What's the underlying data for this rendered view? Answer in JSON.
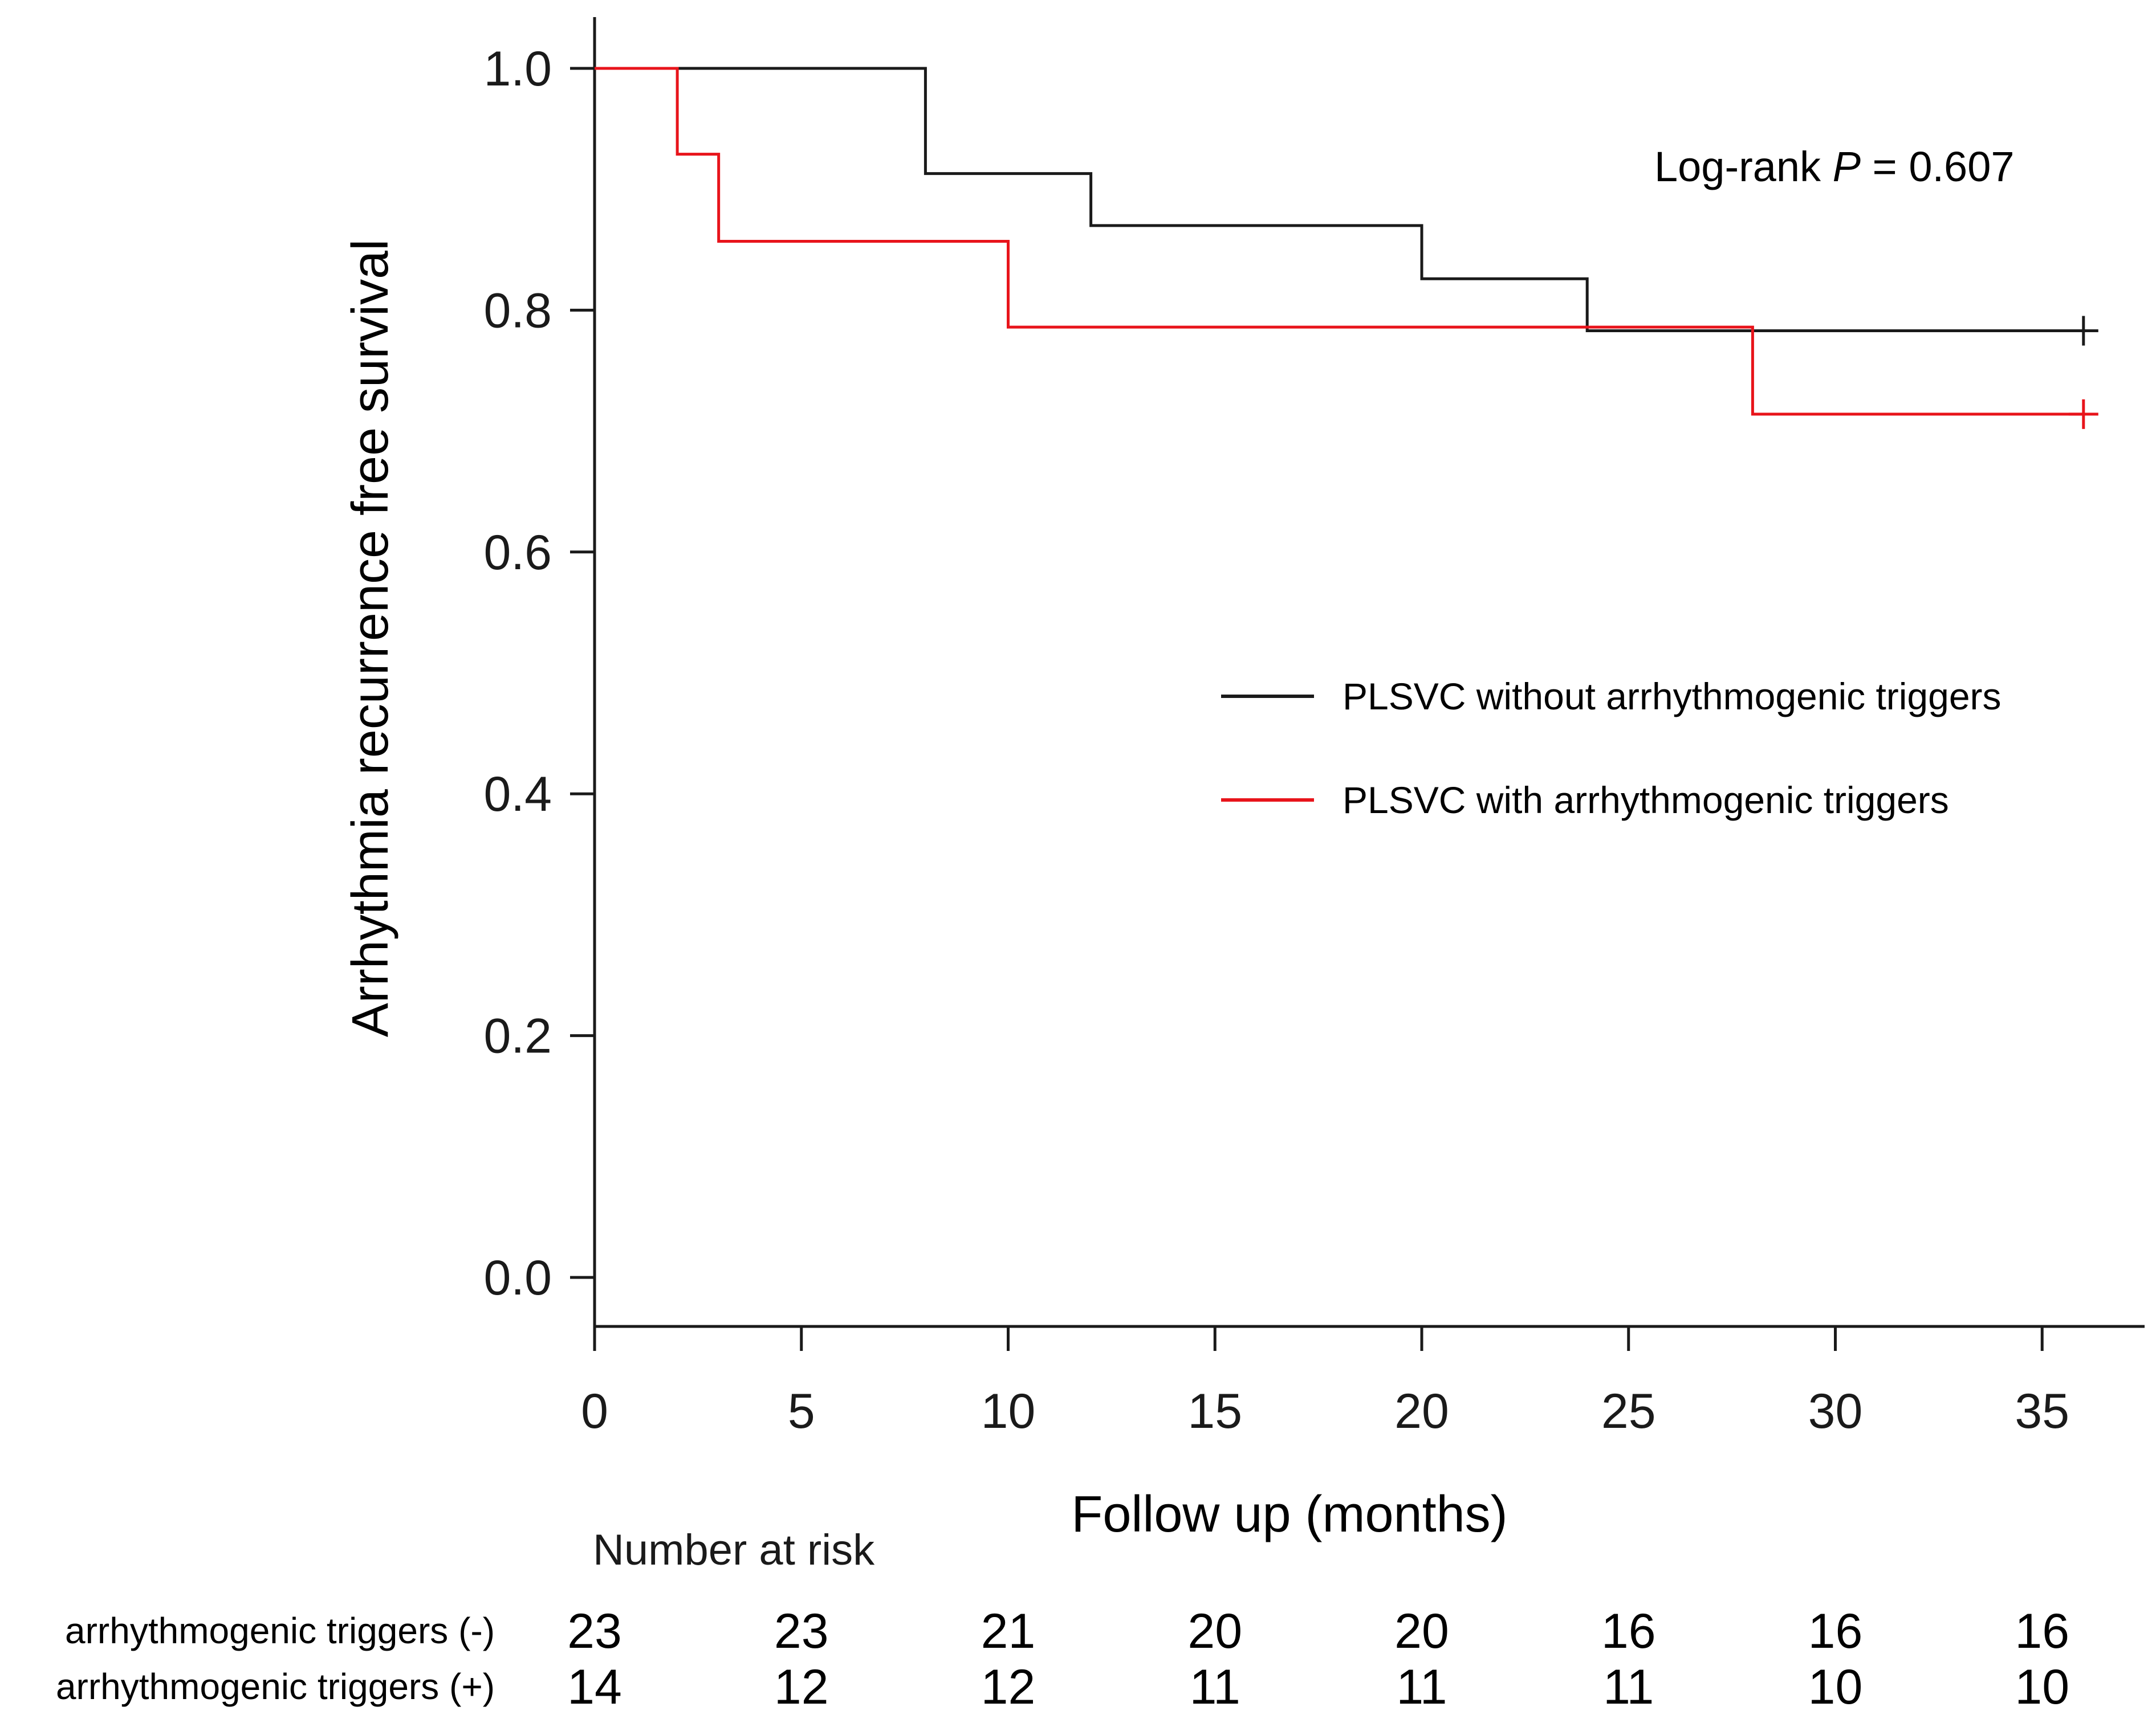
{
  "chart_data": {
    "type": "line",
    "subtype": "kaplan-meier",
    "xlabel": "Follow up (months)",
    "ylabel": "Arrhythmia recurrence free survival",
    "xlim": [
      0,
      37.5
    ],
    "ylim": [
      -0.04,
      1.04
    ],
    "xticks": [
      0,
      5,
      10,
      15,
      20,
      25,
      30,
      35
    ],
    "yticks": [
      0.0,
      0.2,
      0.4,
      0.6,
      0.8,
      1.0
    ],
    "ytick_labels": [
      "0.0",
      "0.2",
      "0.4",
      "0.6",
      "0.8",
      "1.0"
    ],
    "annotation": {
      "prefix": "Log-rank ",
      "italic": "P",
      "suffix": " = 0.607"
    },
    "legend_position": "right-middle",
    "series": [
      {
        "name": "PLSVC without arrhythmogenic triggers",
        "color": "#1a1a1a",
        "steps": [
          [
            0,
            1.0
          ],
          [
            8,
            0.913
          ],
          [
            12,
            0.87
          ],
          [
            20,
            0.826
          ],
          [
            24,
            0.783
          ]
        ],
        "end": 36,
        "censor": [
          [
            36,
            0.783
          ]
        ]
      },
      {
        "name": "PLSVC with arrhythmogenic triggers",
        "color": "#e8141b",
        "steps": [
          [
            0,
            1.0
          ],
          [
            2,
            0.929
          ],
          [
            3,
            0.857
          ],
          [
            10,
            0.786
          ],
          [
            28,
            0.714
          ]
        ],
        "end": 36,
        "censor": [
          [
            36,
            0.714
          ]
        ]
      }
    ],
    "risk_table": {
      "title": "Number at risk",
      "times": [
        0,
        5,
        10,
        15,
        20,
        25,
        30,
        35
      ],
      "rows": [
        {
          "label": "arrhythmogenic triggers (-)",
          "values": [
            23,
            23,
            21,
            20,
            20,
            16,
            16,
            16
          ]
        },
        {
          "label": "arrhythmogenic triggers (+)",
          "values": [
            14,
            12,
            12,
            11,
            11,
            11,
            10,
            10
          ]
        }
      ]
    }
  }
}
